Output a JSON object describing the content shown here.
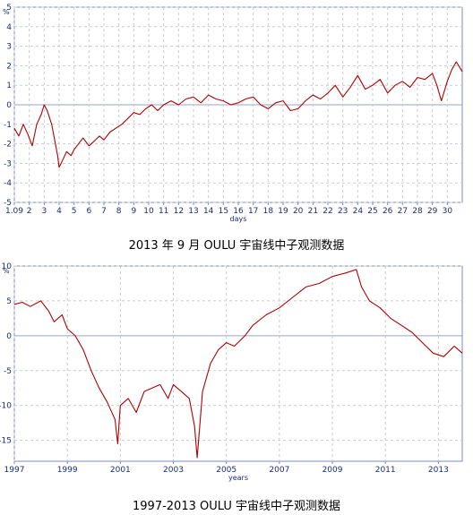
{
  "chart_data": [
    {
      "type": "line",
      "title": "2013 年 9 月 OULU 宇宙线中子观测数据",
      "unit_label": "%",
      "xlabel": "days",
      "ylim": [
        -5,
        5
      ],
      "xlim": [
        1,
        31
      ],
      "yticks": [
        -5,
        -4,
        -3,
        -2,
        -1,
        0,
        1,
        2,
        3,
        4,
        5
      ],
      "xticks": [
        {
          "x": 1,
          "label": "1.09"
        },
        {
          "x": 2,
          "label": "2"
        },
        {
          "x": 3,
          "label": "3"
        },
        {
          "x": 4,
          "label": "4"
        },
        {
          "x": 5,
          "label": "5"
        },
        {
          "x": 6,
          "label": "6"
        },
        {
          "x": 7,
          "label": "7"
        },
        {
          "x": 8,
          "label": "8"
        },
        {
          "x": 9,
          "label": "9"
        },
        {
          "x": 10,
          "label": "10"
        },
        {
          "x": 11,
          "label": "11"
        },
        {
          "x": 12,
          "label": "12"
        },
        {
          "x": 13,
          "label": "13"
        },
        {
          "x": 14,
          "label": "14"
        },
        {
          "x": 15,
          "label": "15"
        },
        {
          "x": 16,
          "label": "16"
        },
        {
          "x": 17,
          "label": "17"
        },
        {
          "x": 18,
          "label": "18"
        },
        {
          "x": 19,
          "label": "19"
        },
        {
          "x": 20,
          "label": "20"
        },
        {
          "x": 21,
          "label": "21"
        },
        {
          "x": 22,
          "label": "22"
        },
        {
          "x": 23,
          "label": "23"
        },
        {
          "x": 24,
          "label": "24"
        },
        {
          "x": 25,
          "label": "25"
        },
        {
          "x": 26,
          "label": "26"
        },
        {
          "x": 27,
          "label": "27"
        },
        {
          "x": 28,
          "label": "28"
        },
        {
          "x": 29,
          "label": "29"
        },
        {
          "x": 30,
          "label": "30"
        }
      ],
      "grid": true,
      "line_color": "#b00000",
      "series": [
        {
          "x": [
            1,
            1.3,
            1.6,
            1.9,
            2.2,
            2.5,
            2.8,
            3.0,
            3.2,
            3.5,
            3.7,
            3.9,
            4.0,
            4.2,
            4.5,
            4.8,
            5.0,
            5.3,
            5.6,
            6.0,
            6.3,
            6.7,
            7.0,
            7.4,
            7.8,
            8.2,
            8.6,
            9.0,
            9.4,
            9.8,
            10.2,
            10.6,
            11.0,
            11.5,
            12.0,
            12.5,
            13.0,
            13.5,
            14.0,
            14.5,
            15.0,
            15.5,
            16.0,
            16.5,
            17.0,
            17.5,
            18.0,
            18.5,
            19.0,
            19.5,
            20.0,
            20.5,
            21.0,
            21.5,
            22.0,
            22.5,
            23.0,
            23.5,
            24.0,
            24.5,
            25.0,
            25.5,
            26.0,
            26.5,
            27.0,
            27.5,
            28.0,
            28.5,
            29.0,
            29.3,
            29.6,
            30.0,
            30.3,
            30.6,
            31.0
          ],
          "y": [
            -1.2,
            -1.6,
            -1.0,
            -1.5,
            -2.1,
            -1.0,
            -0.5,
            0.0,
            -0.3,
            -1.0,
            -1.8,
            -2.6,
            -3.2,
            -2.9,
            -2.4,
            -2.6,
            -2.3,
            -2.0,
            -1.7,
            -2.1,
            -1.9,
            -1.6,
            -1.8,
            -1.4,
            -1.2,
            -1.0,
            -0.7,
            -0.4,
            -0.5,
            -0.2,
            0.0,
            -0.3,
            0.0,
            0.2,
            0.0,
            0.3,
            0.4,
            0.1,
            0.5,
            0.3,
            0.2,
            0.0,
            0.1,
            0.3,
            0.4,
            0.0,
            -0.2,
            0.1,
            0.2,
            -0.3,
            -0.2,
            0.2,
            0.5,
            0.3,
            0.6,
            1.0,
            0.4,
            0.9,
            1.5,
            0.8,
            1.0,
            1.3,
            0.6,
            1.0,
            1.2,
            0.9,
            1.4,
            1.3,
            1.6,
            1.0,
            0.2,
            1.2,
            1.8,
            2.2,
            1.7
          ]
        }
      ]
    },
    {
      "type": "line",
      "title": "1997-2013 OULU 宇宙线中子观测数据",
      "unit_label": "%",
      "xlabel": "years",
      "ylim": [
        -18,
        10
      ],
      "xlim": [
        1997,
        2013.9
      ],
      "yticks": [
        -15,
        -10,
        -5,
        0,
        5,
        10
      ],
      "xticks": [
        {
          "x": 1997,
          "label": "1997"
        },
        {
          "x": 1999,
          "label": "1999"
        },
        {
          "x": 2001,
          "label": "2001"
        },
        {
          "x": 2003,
          "label": "2003"
        },
        {
          "x": 2005,
          "label": "2005"
        },
        {
          "x": 2007,
          "label": "2007"
        },
        {
          "x": 2009,
          "label": "2009"
        },
        {
          "x": 2011,
          "label": "2011"
        },
        {
          "x": 2013,
          "label": "2013"
        }
      ],
      "grid": true,
      "line_color": "#b00000",
      "series": [
        {
          "x": [
            1997.0,
            1997.3,
            1997.6,
            1998.0,
            1998.3,
            1998.5,
            1998.8,
            1999.0,
            1999.3,
            1999.6,
            1999.9,
            2000.2,
            2000.5,
            2000.8,
            2000.9,
            2001.0,
            2001.3,
            2001.6,
            2001.9,
            2002.2,
            2002.5,
            2002.8,
            2003.0,
            2003.3,
            2003.6,
            2003.8,
            2003.9,
            2004.1,
            2004.4,
            2004.7,
            2005.0,
            2005.3,
            2005.7,
            2006.0,
            2006.5,
            2007.0,
            2007.5,
            2008.0,
            2008.5,
            2009.0,
            2009.5,
            2009.9,
            2010.1,
            2010.4,
            2010.8,
            2011.2,
            2011.6,
            2012.0,
            2012.4,
            2012.8,
            2013.2,
            2013.6,
            2013.9
          ],
          "y": [
            4.5,
            4.8,
            4.2,
            5.0,
            3.5,
            2.0,
            3.0,
            1.0,
            0.0,
            -2.0,
            -5.0,
            -7.5,
            -9.5,
            -12.0,
            -15.5,
            -10.0,
            -9.0,
            -11.0,
            -8.0,
            -7.5,
            -7.0,
            -9.0,
            -7.0,
            -8.0,
            -9.0,
            -13.0,
            -17.5,
            -8.0,
            -4.0,
            -2.0,
            -1.0,
            -1.5,
            0.0,
            1.5,
            3.0,
            4.0,
            5.5,
            7.0,
            7.5,
            8.5,
            9.0,
            9.5,
            7.0,
            5.0,
            4.0,
            2.5,
            1.5,
            0.5,
            -1.0,
            -2.5,
            -3.0,
            -1.5,
            -2.5
          ]
        }
      ]
    }
  ]
}
